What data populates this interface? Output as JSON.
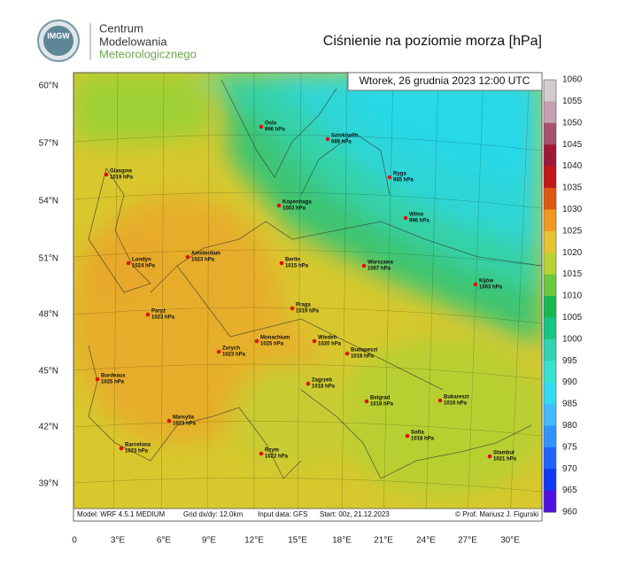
{
  "logo": {
    "text": "IMGW",
    "lines": [
      "Centrum",
      "Modelowania",
      "Meteorologicznego"
    ]
  },
  "title": "Ciśnienie na poziomie morza [hPa]",
  "valid_time": "Wtorek, 26 grudnia 2023 12:00 UTC",
  "lat_labels": [
    "60°N",
    "57°N",
    "54°N",
    "51°N",
    "48°N",
    "45°N",
    "42°N",
    "39°N"
  ],
  "lon_labels": [
    "0",
    "3°E",
    "6°E",
    "9°E",
    "12°E",
    "15°E",
    "18°E",
    "21°E",
    "24°E",
    "27°E",
    "30°E"
  ],
  "colorbar": {
    "labels": [
      "1060",
      "1055",
      "1050",
      "1045",
      "1040",
      "1035",
      "1030",
      "1025",
      "1020",
      "1015",
      "1010",
      "1005",
      "1000",
      "995",
      "990",
      "985",
      "980",
      "975",
      "970",
      "965",
      "960"
    ],
    "colors": [
      "#d4cccc",
      "#c4a0b0",
      "#a85070",
      "#a01838",
      "#c41818",
      "#e05810",
      "#f09820",
      "#e8c430",
      "#b8d430",
      "#6cc83c",
      "#18b850",
      "#18c482",
      "#30d4b0",
      "#38e2d0",
      "#30dcf0",
      "#40bcff",
      "#3094ff",
      "#2064ff",
      "#1038f0",
      "#5010e0"
    ]
  },
  "cities": [
    {
      "name": "Oslo",
      "pressure": "996 hPa"
    },
    {
      "name": "Sztokholm",
      "pressure": "989 hPa"
    },
    {
      "name": "Glasgow",
      "pressure": "1019 hPa"
    },
    {
      "name": "Ryga",
      "pressure": "985 hPa"
    },
    {
      "name": "Kopenhaga",
      "pressure": "1003 hPa"
    },
    {
      "name": "Wilno",
      "pressure": "996 hPa"
    },
    {
      "name": "Londyn",
      "pressure": "1024 hPa"
    },
    {
      "name": "Amsterdam",
      "pressure": "1023 hPa"
    },
    {
      "name": "Berlin",
      "pressure": "1015 hPa"
    },
    {
      "name": "Warszawa",
      "pressure": "1007 hPa"
    },
    {
      "name": "Kijów",
      "pressure": "1003 hPa"
    },
    {
      "name": "Paryż",
      "pressure": "1023 hPa"
    },
    {
      "name": "Praga",
      "pressure": "1019 hPa"
    },
    {
      "name": "Monachium",
      "pressure": "1025 hPa"
    },
    {
      "name": "Wiedeń",
      "pressure": "1020 hPa"
    },
    {
      "name": "Budapeszt",
      "pressure": "1018 hPa"
    },
    {
      "name": "Zurych",
      "pressure": "1023 hPa"
    },
    {
      "name": "Bordeaux",
      "pressure": "1025 hPa"
    },
    {
      "name": "Zagrzeb",
      "pressure": "1018 hPa"
    },
    {
      "name": "Belgrad",
      "pressure": "1018 hPa"
    },
    {
      "name": "Bukareszt",
      "pressure": "1016 hPa"
    },
    {
      "name": "Marsylia",
      "pressure": "1023 hPa"
    },
    {
      "name": "Sofia",
      "pressure": "1018 hPa"
    },
    {
      "name": "Barcelona",
      "pressure": "1023 hPa"
    },
    {
      "name": "Rzym",
      "pressure": "1022 hPa"
    },
    {
      "name": "Stambuł",
      "pressure": "1021 hPa"
    }
  ],
  "footer": {
    "model": "Model: WRF 4.5.1 MEDIUM",
    "grid": "Grid dx/dy: 12.0km",
    "input": "Input data: GFS",
    "start": "Start: 00z, 21.12.2023",
    "credit": "© Prof. Mariusz J. Figurski"
  }
}
